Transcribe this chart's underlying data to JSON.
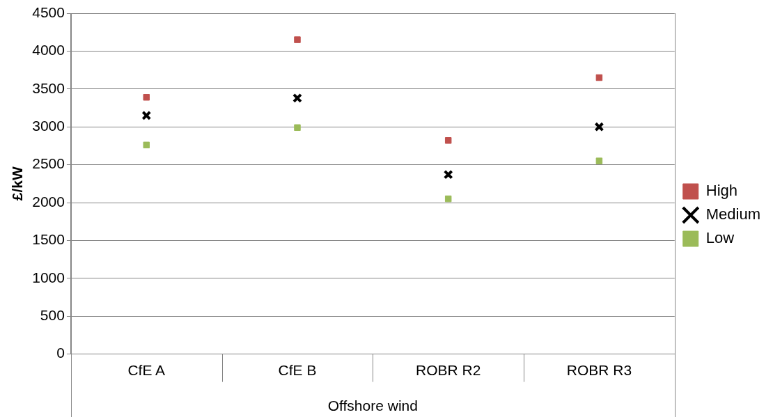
{
  "chart_data": {
    "type": "scatter",
    "ylabel": "£/kW",
    "xlabel": "Offshore wind",
    "categories": [
      "CfE A",
      "CfE B",
      "ROBR R2",
      "ROBR R3"
    ],
    "series": [
      {
        "name": "High",
        "color": "#c0504d",
        "marker": "square",
        "values": [
          3390,
          4150,
          2820,
          3650
        ]
      },
      {
        "name": "Medium",
        "color": "#000000",
        "marker": "cross",
        "values": [
          3150,
          3380,
          2370,
          3000
        ]
      },
      {
        "name": "Low",
        "color": "#9bbb59",
        "marker": "square",
        "values": [
          2760,
          2990,
          2050,
          2550
        ]
      }
    ],
    "ylim": [
      0,
      4500
    ],
    "yticks": [
      0,
      500,
      1000,
      1500,
      2000,
      2500,
      3000,
      3500,
      4000,
      4500
    ],
    "grid": "y",
    "legend": "right"
  }
}
